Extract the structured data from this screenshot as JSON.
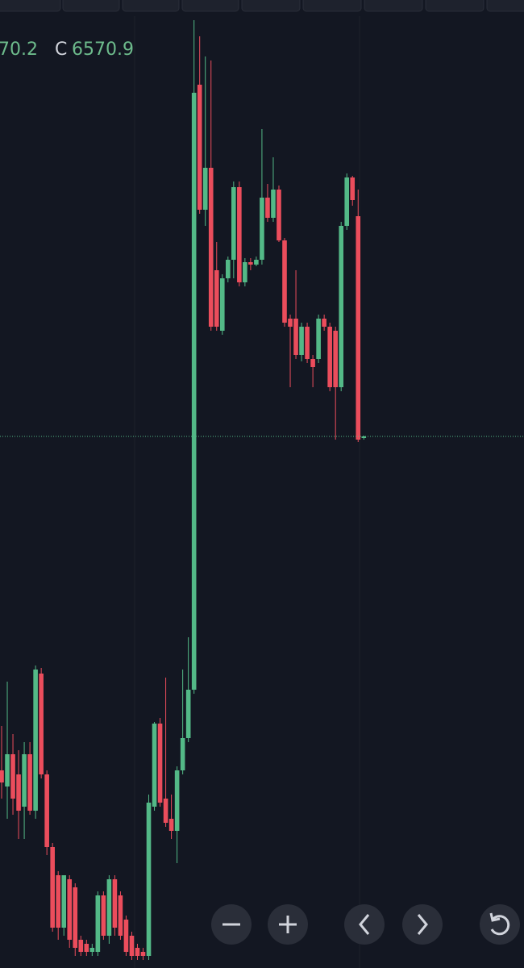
{
  "chart_data": {
    "type": "candlestick",
    "legend_text": {
      "partial": "70.2",
      "close_label": "C"
    },
    "up_color": "#53b987",
    "down_color": "#eb4d5c",
    "ylim": [
      6241.4,
      6841.4
    ],
    "open": [
      6363.9,
      6353.9,
      6373.9,
      6361.4,
      6341.4,
      6373.9,
      6338.9,
      6423.9,
      6361.4,
      6316.4,
      6298.9,
      6266.4,
      6296.4,
      6291.4,
      6258.9,
      6256.4,
      6251.4,
      6251.4,
      6286.4,
      6261.4,
      6296.4,
      6286.4,
      6271.4,
      6261.4,
      6253.9,
      6251.4,
      6248.9,
      6341.4,
      6392.9,
      6346.4,
      6333.9,
      6326.4,
      6363.9,
      6383.9,
      6413.9,
      6788.9,
      6711.4,
      6737.4,
      6673.9,
      6636.4,
      6668.9,
      6680.4,
      6725.4,
      6666.4,
      6678.9,
      6677.4,
      6680.4,
      6718.9,
      6706.4,
      6723.9,
      6692.4,
      6643.9,
      6643.9,
      6621.4,
      6638.9,
      6618.9,
      6618.9,
      6643.9,
      6638.9,
      6636.4,
      6601.4,
      6701.4,
      6731.4,
      6707.4,
      6569.9
    ],
    "high": [
      6391.4,
      6418.9,
      6386.4,
      6376.4,
      6381.4,
      6381.4,
      6428.9,
      6427.4,
      6363.9,
      6318.9,
      6301.4,
      6298.9,
      6298.9,
      6293.9,
      6261.4,
      6258.9,
      6256.4,
      6288.9,
      6288.9,
      6298.9,
      6298.9,
      6288.9,
      6273.9,
      6263.9,
      6256.4,
      6253.9,
      6348.9,
      6393.9,
      6396.4,
      6421.4,
      6348.9,
      6366.4,
      6426.4,
      6446.4,
      6828.9,
      6818.9,
      6806.4,
      6803.9,
      6691.4,
      6671.4,
      6682.4,
      6728.9,
      6728.9,
      6681.4,
      6681.4,
      6682.4,
      6761.4,
      6727.4,
      6743.9,
      6726.4,
      6693.9,
      6646.4,
      6673.9,
      6641.4,
      6641.4,
      6621.4,
      6646.4,
      6646.4,
      6641.4,
      6638.9,
      6703.9,
      6733.9,
      6732.4,
      6723.9,
      6571.4
    ],
    "low": [
      6346.4,
      6333.9,
      6336.4,
      6321.4,
      6321.4,
      6336.4,
      6333.9,
      6358.9,
      6311.4,
      6263.9,
      6258.9,
      6261.4,
      6253.9,
      6248.9,
      6248.9,
      6248.9,
      6248.9,
      6248.9,
      6258.9,
      6256.4,
      6261.4,
      6258.9,
      6248.9,
      6246.4,
      6246.4,
      6246.4,
      6246.4,
      6338.9,
      6341.4,
      6328.9,
      6321.4,
      6306.4,
      6361.4,
      6381.4,
      6411.4,
      6708.9,
      6701.4,
      6636.4,
      6636.4,
      6633.9,
      6666.4,
      6668.9,
      6663.9,
      6663.9,
      6673.9,
      6676.4,
      6677.4,
      6703.9,
      6703.9,
      6691.4,
      6638.9,
      6601.4,
      6618.9,
      6617.4,
      6616.4,
      6601.4,
      6616.4,
      6636.4,
      6598.9,
      6568.9,
      6598.9,
      6698.9,
      6713.9,
      6567.4,
      6568.9
    ],
    "close": [
      6356.4,
      6373.9,
      6346.4,
      6338.9,
      6373.9,
      6338.9,
      6426.4,
      6361.4,
      6316.4,
      6266.4,
      6266.4,
      6298.9,
      6258.9,
      6253.9,
      6251.4,
      6251.4,
      6253.9,
      6286.4,
      6261.4,
      6296.4,
      6266.4,
      6261.4,
      6251.4,
      6248.9,
      6248.9,
      6248.9,
      6343.9,
      6392.9,
      6343.9,
      6331.4,
      6326.4,
      6363.9,
      6383.9,
      6413.9,
      6783.9,
      6711.4,
      6737.4,
      6638.9,
      6638.9,
      6668.9,
      6680.4,
      6725.4,
      6666.4,
      6678.9,
      6677.4,
      6680.4,
      6718.9,
      6706.4,
      6723.9,
      6692.4,
      6641.4,
      6638.9,
      6621.4,
      6638.9,
      6618.9,
      6613.9,
      6643.9,
      6638.9,
      6601.4,
      6601.4,
      6701.4,
      6731.4,
      6717.4,
      6568.9,
      6570.9
    ]
  }
}
